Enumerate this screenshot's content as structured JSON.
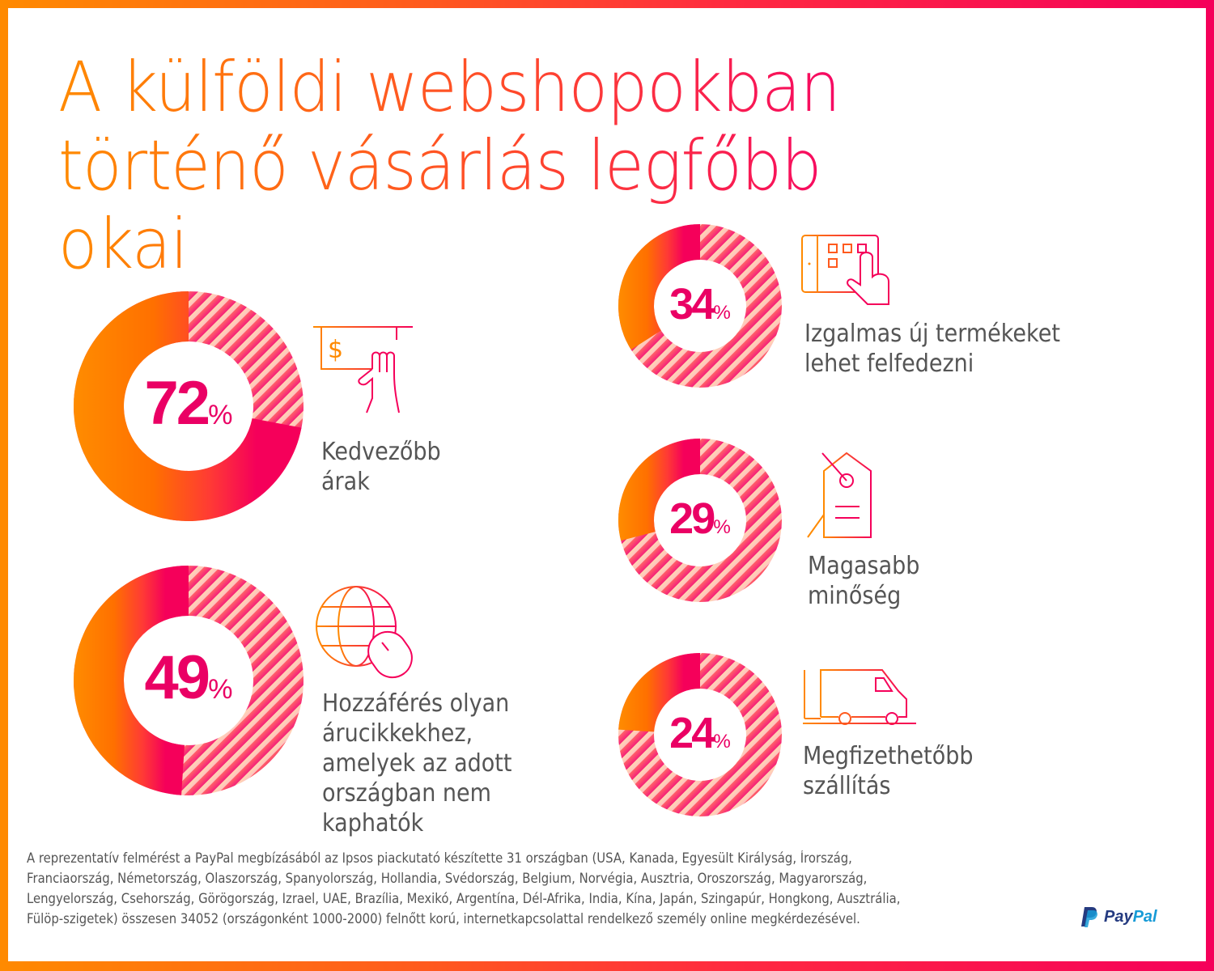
{
  "title": {
    "lines": [
      "A külföldi webshopokban",
      "történő vásárlás legfőbb",
      "okai"
    ]
  },
  "colors": {
    "orange": "#ff8a00",
    "pink": "#f5005a",
    "text": "#555555",
    "percent": "#ea0064"
  },
  "chart_data": [
    {
      "type": "pie",
      "variant": "donut",
      "label": "Kedvezőbb árak",
      "value": 72,
      "display": "72",
      "unit": "%",
      "icon": "dollar-bill-hand-icon"
    },
    {
      "type": "pie",
      "variant": "donut",
      "label": "Hozzáférés olyan árucikkekhez, amelyek az adott országban nem kaphatók",
      "value": 49,
      "display": "49",
      "unit": "%",
      "icon": "globe-mouse-icon"
    },
    {
      "type": "pie",
      "variant": "donut",
      "label": "Izgalmas új termékeket lehet felfedezni",
      "value": 34,
      "display": "34",
      "unit": "%",
      "icon": "tablet-touch-icon"
    },
    {
      "type": "pie",
      "variant": "donut",
      "label": "Magasabb minőség",
      "value": 29,
      "display": "29",
      "unit": "%",
      "icon": "price-tag-icon"
    },
    {
      "type": "pie",
      "variant": "donut",
      "label": "Megfizethetőbb szállítás",
      "value": 24,
      "display": "24",
      "unit": "%",
      "icon": "delivery-van-icon"
    }
  ],
  "labels": [
    [
      "Kedvezőbb",
      "árak"
    ],
    [
      "Hozzáférés olyan",
      "árucikkekhez,",
      "amelyek az adott",
      "országban nem",
      "kaphatók"
    ],
    [
      "Izgalmas új termékeket",
      "lehet felfedezni"
    ],
    [
      "Magasabb",
      "minőség"
    ],
    [
      "Megfizethetőbb",
      "szállítás"
    ]
  ],
  "footer": {
    "lines": [
      "A reprezentatív felmérést a PayPal megbízásából az Ipsos piackutató készítette 31 országban (USA, Kanada, Egyesült Királyság, Írország,",
      "Franciaország, Németország, Olaszország, Spanyolország, Hollandia, Svédország, Belgium, Norvégia, Ausztria, Oroszország, Magyarország,",
      "Lengyelország, Csehország, Görögország, Izrael, UAE, Brazília, Mexikó, Argentína, Dél-Afrika, India, Kína, Japán, Szingapúr, Hongkong, Ausztrália,",
      "Fülöp-szigetek) összesen 34052 (országonként 1000-2000) felnőtt korú, internetkapcsolattal rendelkező személy online megkérdezésével."
    ]
  },
  "logo": {
    "pay": "Pay",
    "pal": "Pal"
  }
}
